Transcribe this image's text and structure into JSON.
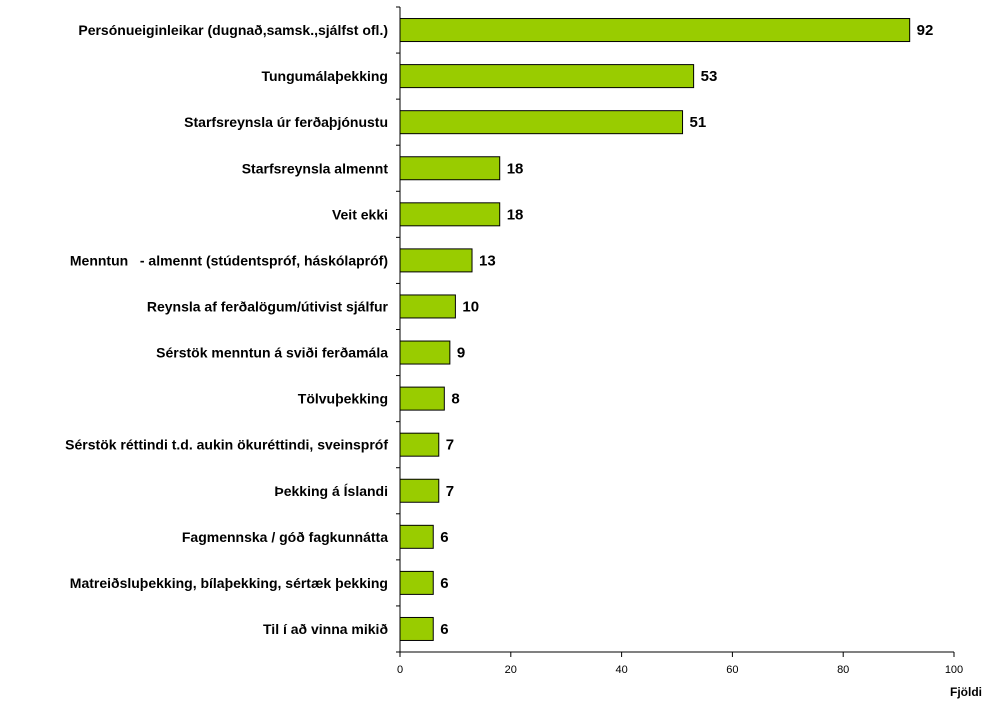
{
  "chart_data": {
    "type": "bar",
    "orientation": "horizontal",
    "categories": [
      "Persónueiginleikar (dugnað,samsk.,sjálfst ofl.)",
      "Tungumálaþekking",
      "Starfsreynsla úr ferðaþjónustu",
      "Starfsreynsla almennt",
      "Veit ekki",
      "Menntun   - almennt (stúdentspróf, háskólapróf)",
      "Reynsla af ferðalögum/útivist sjálfur",
      "Sérstök menntun á sviði ferðamála",
      "Tölvuþekking",
      "Sérstök réttindi t.d. aukin ökuréttindi, sveinspróf",
      "Þekking á Íslandi",
      "Fagmennska / góð fagkunnátta",
      "Matreiðsluþekking, bílaþekking, sértæk þekking",
      "Til í að vinna mikið"
    ],
    "values": [
      92,
      53,
      51,
      18,
      18,
      13,
      10,
      9,
      8,
      7,
      7,
      6,
      6,
      6
    ],
    "title": "",
    "xlabel": "Fjöldi",
    "ylabel": "",
    "xlim": [
      0,
      100
    ],
    "xticks": [
      "0",
      "20",
      "40",
      "60",
      "80",
      "100"
    ],
    "grid": false,
    "legend": "none",
    "bar_color": "#99cc00",
    "bar_edge_color": "#000000"
  }
}
